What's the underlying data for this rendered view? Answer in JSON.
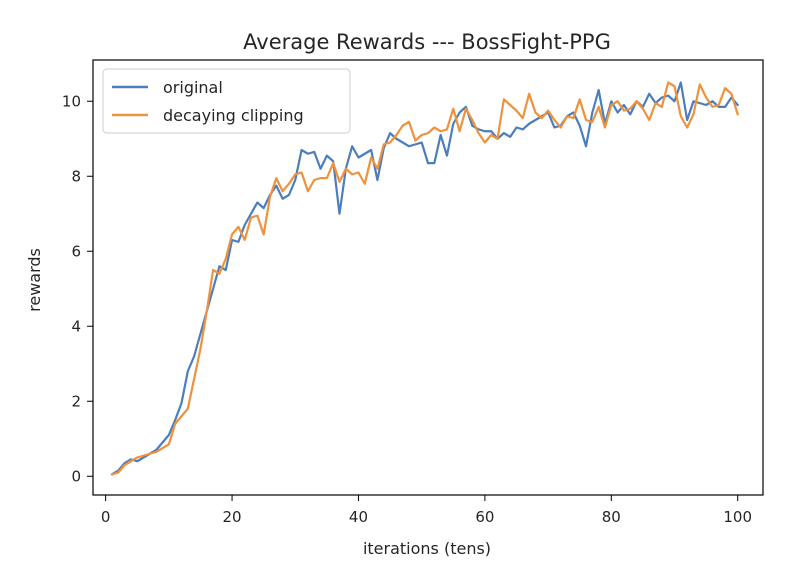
{
  "chart_data": {
    "type": "line",
    "title": "Average Rewards --- BossFight-PPG",
    "xlabel": "iterations (tens)",
    "ylabel": "rewards",
    "xlim": [
      -2,
      104
    ],
    "ylim": [
      -0.5,
      11.1
    ],
    "xticks": [
      0,
      20,
      40,
      60,
      80,
      100
    ],
    "yticks": [
      0,
      2,
      4,
      6,
      8,
      10
    ],
    "grid": false,
    "legend_position": "upper-left",
    "x": [
      1,
      2,
      3,
      4,
      5,
      6,
      7,
      8,
      9,
      10,
      11,
      12,
      13,
      14,
      15,
      16,
      17,
      18,
      19,
      20,
      21,
      22,
      23,
      24,
      25,
      26,
      27,
      28,
      29,
      30,
      31,
      32,
      33,
      34,
      35,
      36,
      37,
      38,
      39,
      40,
      41,
      42,
      43,
      44,
      45,
      46,
      47,
      48,
      49,
      50,
      51,
      52,
      53,
      54,
      55,
      56,
      57,
      58,
      59,
      60,
      61,
      62,
      63,
      64,
      65,
      66,
      67,
      68,
      69,
      70,
      71,
      72,
      73,
      74,
      75,
      76,
      77,
      78,
      79,
      80,
      81,
      82,
      83,
      84,
      85,
      86,
      87,
      88,
      89,
      90,
      91,
      92,
      93,
      94,
      95,
      96,
      97,
      98,
      99,
      100
    ],
    "series": [
      {
        "name": "original",
        "color": "#4c7ebd",
        "values": [
          0.05,
          0.15,
          0.35,
          0.45,
          0.4,
          0.5,
          0.6,
          0.7,
          0.9,
          1.1,
          1.5,
          1.95,
          2.8,
          3.2,
          3.8,
          4.4,
          5.0,
          5.6,
          5.5,
          6.3,
          6.25,
          6.7,
          7.0,
          7.3,
          7.15,
          7.5,
          7.75,
          7.4,
          7.5,
          7.9,
          8.7,
          8.6,
          8.65,
          8.2,
          8.55,
          8.4,
          7.0,
          8.2,
          8.8,
          8.5,
          8.6,
          8.7,
          7.9,
          8.75,
          9.15,
          9.0,
          8.9,
          8.8,
          8.85,
          8.9,
          8.35,
          8.35,
          9.1,
          8.55,
          9.4,
          9.7,
          9.85,
          9.35,
          9.25,
          9.2,
          9.2,
          9.0,
          9.15,
          9.05,
          9.3,
          9.25,
          9.4,
          9.5,
          9.6,
          9.7,
          9.3,
          9.35,
          9.6,
          9.7,
          9.35,
          8.8,
          9.7,
          10.3,
          9.4,
          10.0,
          9.7,
          9.9,
          9.65,
          10.0,
          9.85,
          10.2,
          9.95,
          10.1,
          10.15,
          10.0,
          10.5,
          9.5,
          10.0,
          9.95,
          9.9,
          10.0,
          9.85,
          9.85,
          10.1,
          9.9
        ]
      },
      {
        "name": "decaying clipping",
        "color": "#f0913b",
        "values": [
          0.05,
          0.1,
          0.3,
          0.4,
          0.5,
          0.55,
          0.6,
          0.65,
          0.75,
          0.85,
          1.4,
          1.6,
          1.8,
          2.6,
          3.4,
          4.4,
          5.5,
          5.4,
          5.8,
          6.45,
          6.65,
          6.3,
          6.9,
          6.95,
          6.45,
          7.45,
          7.95,
          7.6,
          7.8,
          8.05,
          8.1,
          7.6,
          7.9,
          7.95,
          7.95,
          8.35,
          7.85,
          8.2,
          8.05,
          8.1,
          7.8,
          8.5,
          8.2,
          8.85,
          8.9,
          9.1,
          9.35,
          9.45,
          8.95,
          9.1,
          9.15,
          9.3,
          9.2,
          9.25,
          9.8,
          9.2,
          9.8,
          9.5,
          9.15,
          8.9,
          9.1,
          9.0,
          10.05,
          9.9,
          9.75,
          9.55,
          10.2,
          9.7,
          9.55,
          9.75,
          9.5,
          9.3,
          9.6,
          9.55,
          10.05,
          9.5,
          9.45,
          9.85,
          9.3,
          9.9,
          10.0,
          9.75,
          9.8,
          10.0,
          9.8,
          9.5,
          9.95,
          9.85,
          10.5,
          10.4,
          9.6,
          9.3,
          9.65,
          10.45,
          10.1,
          9.85,
          9.9,
          10.35,
          10.2,
          9.65
        ]
      }
    ]
  }
}
